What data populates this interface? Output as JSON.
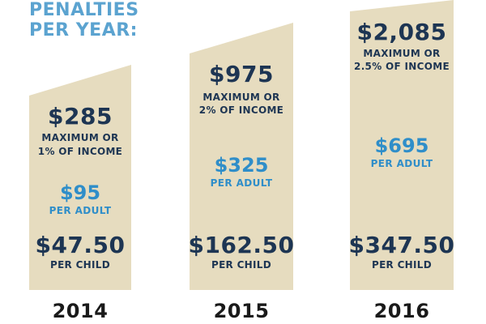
{
  "heading": {
    "line1": "PENALTIES",
    "line2": "PER YEAR:"
  },
  "colors": {
    "column_fill": "#e6dcbf",
    "navy_text": "#1d3553",
    "blue_text": "#2f8ec9",
    "heading_text": "#5ba3d0",
    "year_text": "#1a1a1a"
  },
  "columns": [
    {
      "year": "2014",
      "max_amount": "$285",
      "max_label_line1": "MAXIMUM OR",
      "max_label_line2": "1% OF INCOME",
      "adult_amount": "$95",
      "adult_label": "PER ADULT",
      "child_amount": "$47.50",
      "child_label": "PER CHILD"
    },
    {
      "year": "2015",
      "max_amount": "$975",
      "max_label_line1": "MAXIMUM OR",
      "max_label_line2": "2% OF INCOME",
      "adult_amount": "$325",
      "adult_label": "PER ADULT",
      "child_amount": "$162.50",
      "child_label": "PER CHILD"
    },
    {
      "year": "2016",
      "max_amount": "$2,085",
      "max_label_line1": "MAXIMUM OR",
      "max_label_line2": "2.5% OF INCOME",
      "adult_amount": "$695",
      "adult_label": "PER ADULT",
      "child_amount": "$347.50",
      "child_label": "PER CHILD"
    }
  ]
}
